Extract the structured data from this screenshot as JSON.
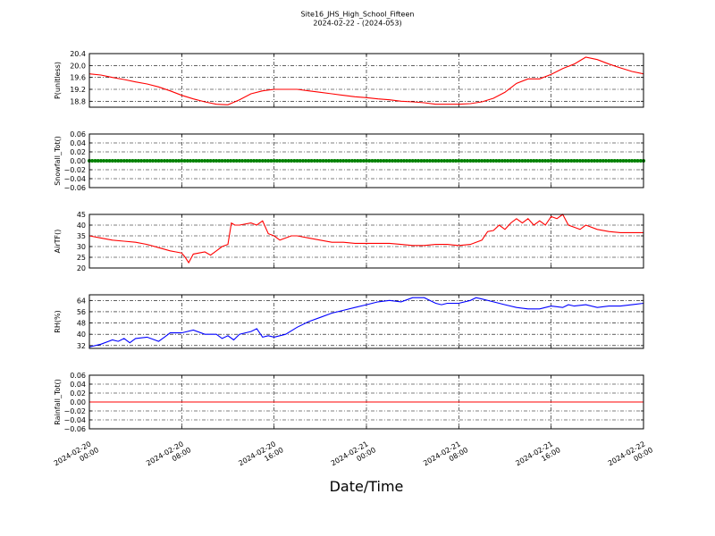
{
  "chart_data": {
    "type": "line",
    "title": "Site16_JHS_High_School_Fifteen",
    "subtitle": "2024-02-22 - (2024-053)",
    "xlabel": "Date/Time",
    "grid": true,
    "x_ticks": [
      {
        "label_date": "2024-02-20",
        "label_time": "00:00",
        "hours": 0
      },
      {
        "label_date": "2024-02-20",
        "label_time": "08:00",
        "hours": 8
      },
      {
        "label_date": "2024-02-20",
        "label_time": "16:00",
        "hours": 16
      },
      {
        "label_date": "2024-02-21",
        "label_time": "00:00",
        "hours": 24
      },
      {
        "label_date": "2024-02-21",
        "label_time": "08:00",
        "hours": 32
      },
      {
        "label_date": "2024-02-21",
        "label_time": "16:00",
        "hours": 40
      },
      {
        "label_date": "2024-02-22",
        "label_time": "00:00",
        "hours": 48
      }
    ],
    "panels": [
      {
        "ylabel": "P(unitless)",
        "ylim": [
          18.6,
          20.4
        ],
        "yticks": [
          18.8,
          19.2,
          19.6,
          20.0,
          20.4
        ],
        "ytick_labels": [
          "18.8",
          "19.2",
          "19.6",
          "20.0",
          "20.4"
        ],
        "color": "#ff0000",
        "marker": false,
        "x_hours": [
          0,
          1,
          2,
          3,
          4,
          5,
          6,
          7,
          8,
          9,
          10,
          11,
          12,
          13,
          14,
          15,
          16,
          17,
          18,
          19,
          20,
          21,
          22,
          23,
          24,
          25,
          26,
          27,
          28,
          29,
          30,
          31,
          32,
          33,
          34,
          35,
          36,
          37,
          38,
          39,
          40,
          41,
          42,
          43,
          44,
          45,
          46,
          47,
          48
        ],
        "y": [
          19.72,
          19.68,
          19.6,
          19.53,
          19.45,
          19.38,
          19.28,
          19.15,
          19.0,
          18.88,
          18.78,
          18.7,
          18.68,
          18.85,
          19.05,
          19.15,
          19.2,
          19.2,
          19.2,
          19.15,
          19.1,
          19.05,
          19.0,
          18.95,
          18.92,
          18.88,
          18.85,
          18.8,
          18.78,
          18.75,
          18.7,
          18.7,
          18.7,
          18.72,
          18.78,
          18.9,
          19.1,
          19.4,
          19.55,
          19.55,
          19.7,
          19.9,
          20.05,
          20.28,
          20.2,
          20.05,
          19.92,
          19.8,
          19.72
        ]
      },
      {
        "ylabel": "Snowfall_Tot()",
        "ylim": [
          -0.06,
          0.06
        ],
        "yticks": [
          -0.06,
          -0.04,
          -0.02,
          0.0,
          0.02,
          0.04,
          0.06
        ],
        "ytick_labels": [
          "−0.06",
          "−0.04",
          "−0.02",
          "0.00",
          "0.02",
          "0.04",
          "0.06"
        ],
        "color": "#008000",
        "marker": true,
        "x_hours": [
          0,
          48
        ],
        "y": [
          0.0,
          0.0
        ]
      },
      {
        "ylabel": "AirTF()",
        "ylim": [
          20,
          45
        ],
        "yticks": [
          20,
          25,
          30,
          35,
          40,
          45
        ],
        "ytick_labels": [
          "20",
          "25",
          "30",
          "35",
          "40",
          "45"
        ],
        "color": "#ff0000",
        "marker": false,
        "x_hours": [
          0,
          1,
          2,
          3,
          4,
          5,
          6,
          7,
          7.5,
          8,
          8.3,
          8.6,
          9,
          10,
          10.5,
          11,
          11.5,
          12,
          12.3,
          12.6,
          13,
          14,
          14.5,
          15,
          15.5,
          16,
          16.5,
          17,
          17.5,
          18,
          19,
          20,
          21,
          22,
          23,
          24,
          25,
          26,
          27,
          28,
          29,
          30,
          31,
          32,
          33,
          34,
          34.5,
          35,
          35.5,
          36,
          36.5,
          37,
          37.5,
          38,
          38.5,
          39,
          39.5,
          40,
          40.5,
          41,
          41.5,
          42,
          42.5,
          43,
          44,
          45,
          46,
          47,
          48
        ],
        "y": [
          35,
          34,
          33,
          32.5,
          32,
          31,
          29.5,
          28,
          27.5,
          27,
          25,
          22.5,
          26.5,
          27.5,
          26,
          28,
          30,
          31,
          41,
          40,
          40,
          41,
          40,
          42,
          36,
          35,
          33,
          34,
          35,
          35,
          34,
          33,
          32,
          32,
          31.5,
          31.5,
          31.5,
          31.5,
          31,
          30.5,
          30.5,
          31,
          31,
          30.5,
          31,
          33,
          37,
          37.5,
          40,
          38,
          41,
          43,
          41,
          43,
          40,
          42,
          40,
          44,
          43,
          45,
          40,
          39,
          38,
          40,
          38,
          37,
          36.5,
          36.5,
          36.5
        ]
      },
      {
        "ylabel": "RH(%)",
        "ylim": [
          30,
          68
        ],
        "yticks": [
          32,
          40,
          48,
          56,
          64
        ],
        "ytick_labels": [
          "32",
          "40",
          "48",
          "56",
          "64"
        ],
        "color": "#0000ff",
        "marker": false,
        "x_hours": [
          0,
          1,
          2,
          2.5,
          3,
          3.5,
          4,
          5,
          6,
          6.5,
          7,
          8,
          9,
          10,
          11,
          11.5,
          12,
          12.5,
          13,
          14,
          14.5,
          15,
          15.5,
          16,
          17,
          18,
          19,
          20,
          21,
          22,
          23,
          24,
          25,
          26,
          27,
          28,
          29,
          30,
          30.5,
          31,
          32,
          33,
          33.5,
          34,
          35,
          36,
          37,
          38,
          39,
          39.5,
          40,
          41,
          41.5,
          42,
          43,
          44,
          45,
          46,
          47,
          48
        ],
        "y": [
          31,
          33,
          36,
          35,
          37,
          34,
          37,
          38,
          35,
          38,
          41,
          41,
          43,
          40,
          40,
          37,
          39,
          36,
          40,
          42,
          44,
          38,
          39,
          38,
          40,
          45,
          49,
          52,
          55,
          57,
          59,
          61,
          63,
          64,
          63,
          66,
          66,
          62,
          61,
          62,
          62,
          64,
          66,
          65,
          63,
          61,
          59,
          58,
          58,
          59,
          60,
          59,
          61,
          60,
          61,
          59,
          60,
          60,
          61,
          62
        ]
      },
      {
        "ylabel": "Rainfall_Tot()",
        "ylim": [
          -0.06,
          0.06
        ],
        "yticks": [
          -0.06,
          -0.04,
          -0.02,
          0.0,
          0.02,
          0.04,
          0.06
        ],
        "ytick_labels": [
          "−0.06",
          "−0.04",
          "−0.02",
          "0.00",
          "0.02",
          "0.04",
          "0.06"
        ],
        "color": "#ff0000",
        "marker": false,
        "x_hours": [
          0,
          48
        ],
        "y": [
          0.0,
          0.0
        ]
      }
    ]
  }
}
